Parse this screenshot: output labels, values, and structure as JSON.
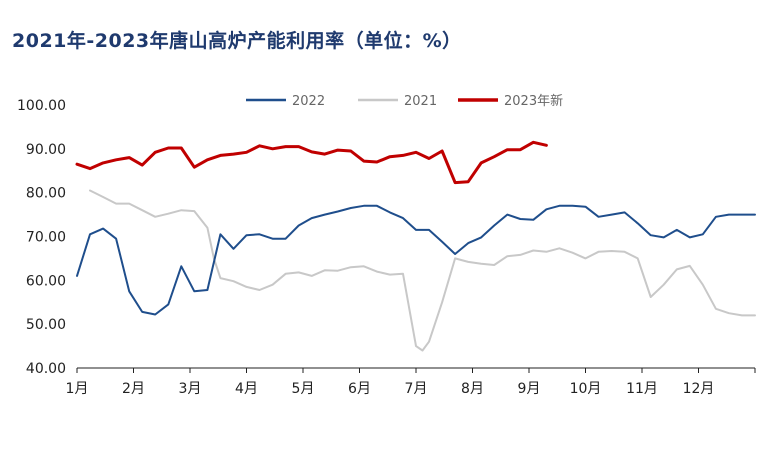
{
  "chart_data": {
    "type": "line",
    "title": "2021年-2023年唐山高炉产能利用率（单位：%）",
    "xlabel": "",
    "ylabel": "",
    "ylim": [
      40,
      100
    ],
    "yticks": [
      "40.00",
      "50.00",
      "60.00",
      "70.00",
      "80.00",
      "90.00",
      "100.00"
    ],
    "xticks": [
      "1月",
      "2月",
      "3月",
      "4月",
      "5月",
      "6月",
      "7月",
      "8月",
      "9月",
      "10月",
      "11月",
      "12月"
    ],
    "x_unit": "week",
    "legend_position": "top",
    "grid": false,
    "series": [
      {
        "name": "2022",
        "color": "#1f4e8c",
        "x": [
          0,
          1,
          2,
          3,
          4,
          5,
          6,
          7,
          8,
          9,
          10,
          11,
          12,
          13,
          14,
          15,
          16,
          17,
          18,
          19,
          20,
          21,
          22,
          23,
          24,
          25,
          26,
          27,
          28,
          29,
          30,
          31,
          32,
          33,
          34,
          35,
          36,
          37,
          38,
          39,
          40,
          41,
          42,
          43,
          44,
          45,
          46,
          47,
          48,
          49,
          50,
          51,
          52
        ],
        "values": [
          61.0,
          70.5,
          71.8,
          69.5,
          57.5,
          52.8,
          52.2,
          54.5,
          63.2,
          57.5,
          57.8,
          70.5,
          67.2,
          70.3,
          70.5,
          69.5,
          69.5,
          72.5,
          74.2,
          75.0,
          75.7,
          76.5,
          77.0,
          77.0,
          75.5,
          74.2,
          71.5,
          71.5,
          68.8,
          66.0,
          68.5,
          69.8,
          72.5,
          75.0,
          74.0,
          73.8,
          76.2,
          77.0,
          77.0,
          76.8,
          74.5,
          75.0,
          75.5,
          73.0,
          70.3,
          69.8,
          71.5,
          69.8,
          70.5,
          74.5,
          75.0,
          75.0,
          75.0
        ],
        "linewidth": 2
      },
      {
        "name": "2021",
        "color": "#c8c8c8",
        "x": [
          1,
          2,
          3,
          4,
          5,
          6,
          7,
          8,
          9,
          10,
          10.5,
          11,
          12,
          13,
          14,
          15,
          16,
          17,
          18,
          19,
          20,
          21,
          22,
          23,
          24,
          25,
          26,
          26.5,
          27,
          28,
          29,
          30,
          31,
          32,
          33,
          34,
          35,
          36,
          37,
          38,
          39,
          40,
          41,
          42,
          43,
          44,
          45,
          46,
          47,
          48,
          49,
          50,
          51,
          52
        ],
        "values": [
          80.5,
          79.0,
          77.5,
          77.5,
          76.0,
          74.5,
          75.2,
          76.0,
          75.8,
          72.0,
          65.0,
          60.5,
          59.8,
          58.5,
          57.8,
          59.0,
          61.5,
          61.8,
          61.0,
          62.3,
          62.2,
          63.0,
          63.2,
          62.0,
          61.3,
          61.5,
          45.0,
          44.0,
          46.0,
          55.0,
          65.0,
          64.2,
          63.8,
          63.5,
          65.5,
          65.8,
          66.8,
          66.5,
          67.3,
          66.3,
          65.0,
          66.5,
          66.7,
          66.5,
          65.0,
          56.2,
          59.0,
          62.5,
          63.3,
          59.0,
          53.5,
          52.5,
          52.0,
          52.0
        ],
        "linewidth": 2
      },
      {
        "name": "2023年新",
        "color": "#c00000",
        "x": [
          0,
          1,
          2,
          3,
          4,
          5,
          6,
          7,
          8,
          9,
          10,
          11,
          12,
          13,
          14,
          15,
          16,
          17,
          18,
          19,
          20,
          21,
          22,
          23,
          24,
          25,
          26,
          27,
          28,
          29,
          30,
          31,
          32,
          33,
          34,
          35,
          36
        ],
        "values": [
          86.5,
          85.5,
          86.8,
          87.5,
          88.0,
          86.3,
          89.2,
          90.2,
          90.2,
          85.8,
          87.5,
          88.5,
          88.8,
          89.2,
          90.7,
          90.0,
          90.5,
          90.5,
          89.3,
          88.8,
          89.7,
          89.5,
          87.2,
          87.0,
          88.2,
          88.5,
          89.2,
          87.8,
          89.5,
          82.3,
          82.5,
          86.8,
          88.2,
          89.8,
          89.8,
          91.5,
          90.8
        ],
        "linewidth": 3
      }
    ]
  }
}
